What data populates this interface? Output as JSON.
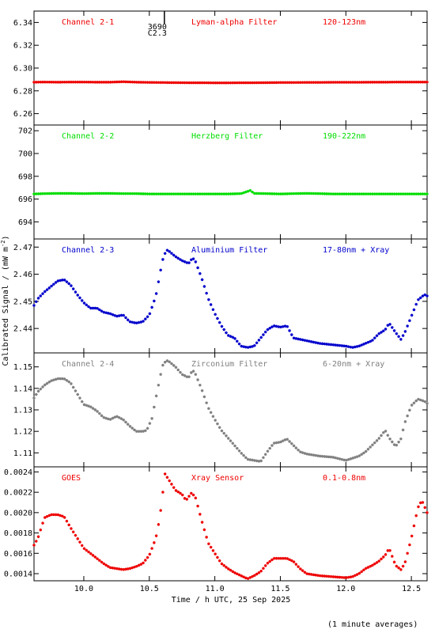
{
  "chart_data": {
    "type": "scatter",
    "xlabel": "Time / h UTC, 25 Sep 2025",
    "ylabel": "Calibrated Signal / (mW m",
    "ylabel_sup": "-2",
    "ylabel_close": ")",
    "footer": "(1 minute averages)",
    "xlim": [
      9.62,
      12.62
    ],
    "xticks": [
      "10.0",
      "10.5",
      "11.0",
      "11.5",
      "12.0",
      "12.5"
    ],
    "marker_annotation": {
      "x": 10.615,
      "lines": [
        "3690",
        "C2.3"
      ]
    },
    "panels": [
      {
        "id": "ch21",
        "labels": [
          "Channel 2-1",
          "Lyman-alpha Filter",
          "120-123nm"
        ],
        "color": "#ee0000",
        "ylim": [
          6.25,
          6.35
        ],
        "yticks": [
          "6.26",
          "6.28",
          "6.30",
          "6.32",
          "6.34"
        ],
        "x": [
          9.62,
          9.7,
          9.8,
          9.9,
          10.0,
          10.1,
          10.2,
          10.3,
          10.4,
          10.5,
          10.6,
          10.7,
          10.8,
          10.9,
          11.0,
          11.1,
          11.2,
          11.3,
          11.4,
          11.5,
          11.6,
          11.7,
          11.8,
          11.9,
          12.0,
          12.1,
          12.2,
          12.3,
          12.4,
          12.5,
          12.62
        ],
        "y": [
          6.2876,
          6.2877,
          6.2876,
          6.2877,
          6.2877,
          6.2876,
          6.2876,
          6.288,
          6.2876,
          6.2874,
          6.2873,
          6.2872,
          6.2871,
          6.2871,
          6.287,
          6.287,
          6.2871,
          6.2871,
          6.2872,
          6.2873,
          6.2873,
          6.2874,
          6.2874,
          6.2875,
          6.2875,
          6.2875,
          6.2876,
          6.2876,
          6.2877,
          6.2877,
          6.2877
        ]
      },
      {
        "id": "ch22",
        "labels": [
          "Channel 2-2",
          "Herzberg Filter",
          "190-222nm"
        ],
        "color": "#00dd00",
        "ylim": [
          692.5,
          702.5
        ],
        "yticks": [
          "694",
          "696",
          "698",
          "700",
          "702"
        ],
        "x": [
          9.62,
          9.7,
          9.8,
          9.9,
          10.0,
          10.1,
          10.2,
          10.3,
          10.4,
          10.5,
          10.6,
          10.7,
          10.8,
          10.9,
          11.0,
          11.1,
          11.2,
          11.27,
          11.3,
          11.4,
          11.5,
          11.6,
          11.7,
          11.8,
          11.9,
          12.0,
          12.1,
          12.2,
          12.3,
          12.4,
          12.5,
          12.62
        ],
        "y": [
          696.45,
          696.48,
          696.5,
          696.5,
          696.48,
          696.5,
          696.5,
          696.48,
          696.48,
          696.45,
          696.45,
          696.45,
          696.45,
          696.45,
          696.45,
          696.45,
          696.48,
          696.75,
          696.5,
          696.48,
          696.45,
          696.48,
          696.5,
          696.48,
          696.45,
          696.45,
          696.45,
          696.45,
          696.45,
          696.45,
          696.45,
          696.45
        ]
      },
      {
        "id": "ch23",
        "labels": [
          "Channel 2-3",
          "Aluminium Filter",
          "17-80nm + Xray"
        ],
        "color": "#0000cc",
        "ylim": [
          2.431,
          2.473
        ],
        "yticks": [
          "2.44",
          "2.45",
          "2.46",
          "2.47"
        ],
        "x": [
          9.62,
          9.65,
          9.7,
          9.75,
          9.8,
          9.85,
          9.9,
          9.95,
          10.0,
          10.05,
          10.1,
          10.15,
          10.2,
          10.25,
          10.3,
          10.35,
          10.4,
          10.45,
          10.5,
          10.55,
          10.6,
          10.63,
          10.65,
          10.7,
          10.75,
          10.8,
          10.83,
          10.85,
          10.9,
          10.95,
          11.0,
          11.05,
          11.1,
          11.15,
          11.2,
          11.25,
          11.3,
          11.35,
          11.4,
          11.45,
          11.5,
          11.55,
          11.6,
          11.65,
          11.7,
          11.8,
          11.9,
          12.0,
          12.05,
          12.1,
          12.15,
          12.2,
          12.25,
          12.3,
          12.33,
          12.38,
          12.42,
          12.45,
          12.5,
          12.55,
          12.6,
          12.62
        ],
        "y": [
          2.4485,
          2.451,
          2.4535,
          2.4555,
          2.4575,
          2.458,
          2.456,
          2.4525,
          2.4495,
          2.4475,
          2.4475,
          2.446,
          2.4455,
          2.4445,
          2.445,
          2.4425,
          2.442,
          2.4425,
          2.445,
          2.452,
          2.465,
          2.469,
          2.4685,
          2.4665,
          2.465,
          2.464,
          2.466,
          2.465,
          2.4585,
          2.451,
          2.4455,
          2.441,
          2.4375,
          2.4365,
          2.4335,
          2.433,
          2.4335,
          2.4365,
          2.4395,
          2.441,
          2.4405,
          2.441,
          2.4365,
          2.436,
          2.4355,
          2.4345,
          2.434,
          2.4335,
          2.433,
          2.4335,
          2.4345,
          2.4355,
          2.438,
          2.4395,
          2.442,
          2.4385,
          2.436,
          2.4385,
          2.4445,
          2.4505,
          2.4525,
          2.452
        ]
      },
      {
        "id": "ch24",
        "labels": [
          "Channel 2-4",
          "Zirconium Filter",
          "6-20nm + Xray"
        ],
        "color": "#808080",
        "ylim": [
          1.1035,
          1.1565
        ],
        "yticks": [
          "1.11",
          "1.12",
          "1.13",
          "1.14",
          "1.15"
        ],
        "x": [
          9.62,
          9.65,
          9.7,
          9.75,
          9.8,
          9.85,
          9.9,
          9.95,
          10.0,
          10.05,
          10.1,
          10.15,
          10.2,
          10.25,
          10.3,
          10.35,
          10.4,
          10.45,
          10.48,
          10.52,
          10.55,
          10.6,
          10.63,
          10.65,
          10.7,
          10.75,
          10.8,
          10.83,
          10.85,
          10.9,
          10.95,
          11.0,
          11.05,
          11.1,
          11.15,
          11.2,
          11.25,
          11.3,
          11.35,
          11.4,
          11.45,
          11.5,
          11.55,
          11.6,
          11.65,
          11.7,
          11.8,
          11.9,
          12.0,
          12.05,
          12.1,
          12.15,
          12.2,
          12.25,
          12.3,
          12.33,
          12.38,
          12.42,
          12.45,
          12.5,
          12.55,
          12.6,
          12.62
        ],
        "y": [
          1.1355,
          1.1385,
          1.1415,
          1.1435,
          1.1445,
          1.1445,
          1.1425,
          1.1375,
          1.1325,
          1.1315,
          1.1295,
          1.1265,
          1.1255,
          1.127,
          1.1255,
          1.1225,
          1.12,
          1.12,
          1.1205,
          1.126,
          1.1355,
          1.1505,
          1.153,
          1.1525,
          1.15,
          1.1465,
          1.145,
          1.1485,
          1.147,
          1.1395,
          1.131,
          1.1255,
          1.1205,
          1.117,
          1.1135,
          1.11,
          1.107,
          1.1065,
          1.106,
          1.1105,
          1.1145,
          1.115,
          1.1165,
          1.1135,
          1.1105,
          1.1095,
          1.1085,
          1.108,
          1.1065,
          1.1075,
          1.1085,
          1.1105,
          1.1135,
          1.1165,
          1.1205,
          1.117,
          1.113,
          1.1165,
          1.124,
          1.132,
          1.135,
          1.134,
          1.133
        ]
      },
      {
        "id": "goes",
        "labels": [
          "GOES",
          "Xray Sensor",
          "0.1-0.8nm"
        ],
        "color": "#ee0000",
        "ylim": [
          0.00133,
          0.00245
        ],
        "yticks": [
          "0.0014",
          "0.0016",
          "0.0018",
          "0.0020",
          "0.0022",
          "0.0024"
        ],
        "x": [
          9.62,
          9.65,
          9.7,
          9.75,
          9.8,
          9.85,
          9.9,
          9.95,
          10.0,
          10.05,
          10.1,
          10.15,
          10.2,
          10.25,
          10.3,
          10.35,
          10.4,
          10.45,
          10.5,
          10.55,
          10.58,
          10.62,
          10.65,
          10.7,
          10.75,
          10.78,
          10.82,
          10.85,
          10.9,
          10.95,
          11.0,
          11.05,
          11.1,
          11.15,
          11.2,
          11.25,
          11.3,
          11.35,
          11.4,
          11.45,
          11.5,
          11.55,
          11.6,
          11.65,
          11.7,
          11.8,
          11.9,
          12.0,
          12.05,
          12.1,
          12.15,
          12.2,
          12.25,
          12.3,
          12.33,
          12.38,
          12.42,
          12.45,
          12.5,
          12.55,
          12.58,
          12.62
        ],
        "y": [
          0.00168,
          0.00175,
          0.00195,
          0.00198,
          0.00198,
          0.00196,
          0.00185,
          0.00175,
          0.00165,
          0.0016,
          0.00155,
          0.0015,
          0.00146,
          0.00145,
          0.00144,
          0.00145,
          0.00147,
          0.0015,
          0.00158,
          0.00175,
          0.00195,
          0.00238,
          0.00232,
          0.00222,
          0.00218,
          0.00212,
          0.00219,
          0.00216,
          0.00192,
          0.0017,
          0.0016,
          0.0015,
          0.00145,
          0.00141,
          0.00138,
          0.00135,
          0.00138,
          0.00142,
          0.0015,
          0.00155,
          0.00155,
          0.00155,
          0.00152,
          0.00145,
          0.0014,
          0.00138,
          0.00137,
          0.00136,
          0.00137,
          0.0014,
          0.00145,
          0.00148,
          0.00152,
          0.00158,
          0.00165,
          0.00148,
          0.00144,
          0.0015,
          0.00175,
          0.00205,
          0.00212,
          0.002
        ]
      }
    ]
  }
}
